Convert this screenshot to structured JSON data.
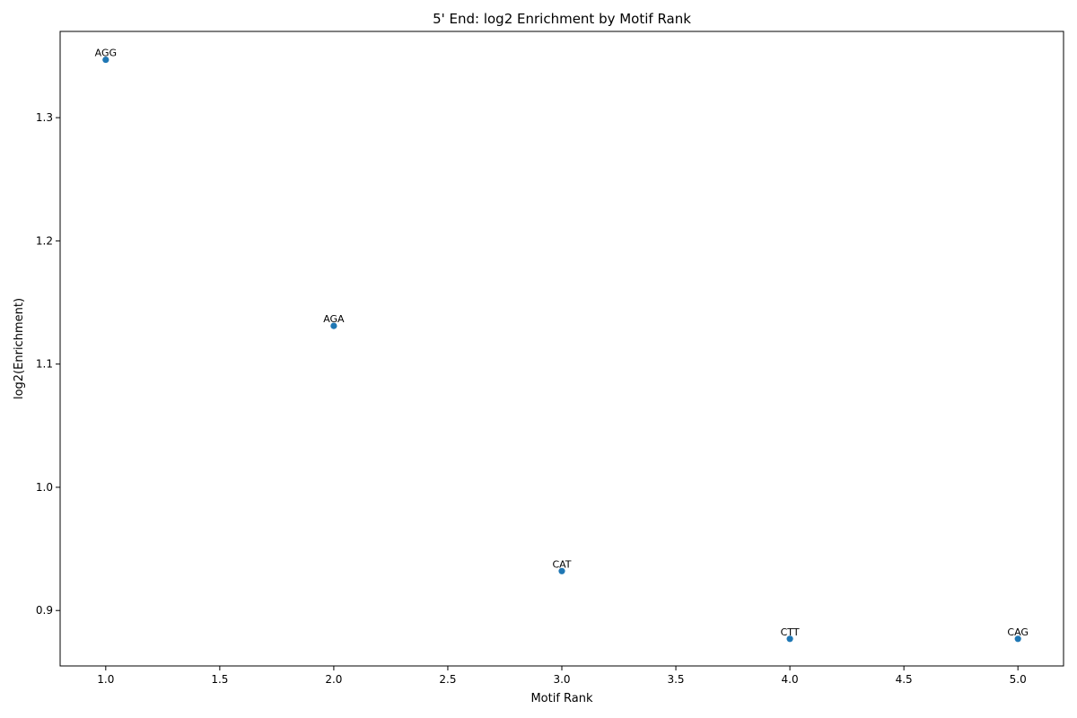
{
  "chart_data": {
    "type": "scatter",
    "title": "5' End: log2 Enrichment by Motif Rank",
    "xlabel": "Motif Rank",
    "ylabel": "log2(Enrichment)",
    "xlim": [
      0.8,
      5.2
    ],
    "ylim": [
      0.855,
      1.37
    ],
    "x_ticks": [
      1.0,
      1.5,
      2.0,
      2.5,
      3.0,
      3.5,
      4.0,
      4.5,
      5.0
    ],
    "x_tick_labels": [
      "1.0",
      "1.5",
      "2.0",
      "2.5",
      "3.0",
      "3.5",
      "4.0",
      "4.5",
      "5.0"
    ],
    "y_ticks": [
      0.9,
      1.0,
      1.1,
      1.2,
      1.3
    ],
    "y_tick_labels": [
      "0.9",
      "1.0",
      "1.1",
      "1.2",
      "1.3"
    ],
    "grid": false,
    "series": [
      {
        "color": "#1f77b4",
        "points": [
          {
            "x": 1,
            "y": 1.347,
            "label": "AGG"
          },
          {
            "x": 2,
            "y": 1.131,
            "label": "AGA"
          },
          {
            "x": 3,
            "y": 0.932,
            "label": "CAT"
          },
          {
            "x": 4,
            "y": 0.877,
            "label": "CTT"
          },
          {
            "x": 5,
            "y": 0.877,
            "label": "CAG"
          }
        ]
      }
    ]
  }
}
